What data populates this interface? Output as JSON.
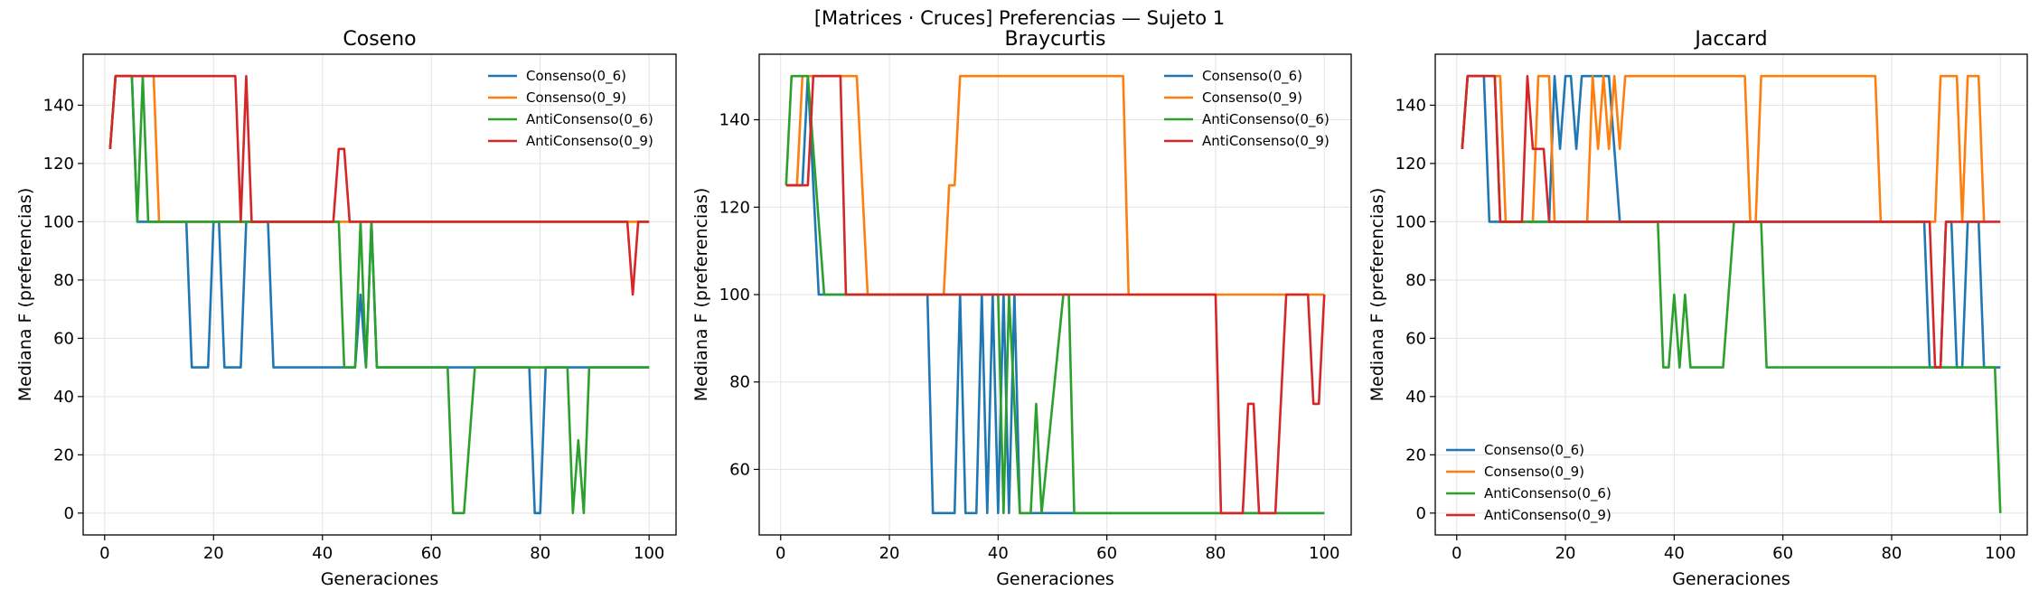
{
  "figure": {
    "suptitle": "[Matrices · Cruces] Preferencias — Sujeto 1"
  },
  "colors": {
    "Consenso(0_6)": "#1f77b4",
    "Consenso(0_9)": "#ff7f0e",
    "AntiConsenso(0_6)": "#2ca02c",
    "AntiConsenso(0_9)": "#d62728"
  },
  "chart_data": [
    {
      "type": "line",
      "title": "Coseno",
      "xlabel": "Generaciones",
      "ylabel": "Mediana F (preferencias)",
      "xlim": [
        -3.95,
        104.95
      ],
      "ylim": [
        -7.5,
        157.5
      ],
      "xticks": [
        0,
        20,
        40,
        60,
        80,
        100
      ],
      "yticks": [
        0,
        20,
        40,
        60,
        80,
        100,
        120,
        140
      ],
      "grid": true,
      "legend_loc": "upper right",
      "series": [
        {
          "name": "Consenso(0_6)",
          "points": [
            [
              1,
              125
            ],
            [
              2,
              150
            ],
            [
              5,
              150
            ],
            [
              6,
              100
            ],
            [
              15,
              100
            ],
            [
              16,
              50
            ],
            [
              19,
              50
            ],
            [
              20,
              100
            ],
            [
              21,
              100
            ],
            [
              22,
              50
            ],
            [
              25,
              50
            ],
            [
              26,
              100
            ],
            [
              30,
              100
            ],
            [
              31,
              50
            ],
            [
              46,
              50
            ],
            [
              47,
              75
            ],
            [
              48,
              50
            ],
            [
              49,
              100
            ],
            [
              50,
              50
            ],
            [
              78,
              50
            ],
            [
              79,
              0
            ],
            [
              80,
              0
            ],
            [
              81,
              50
            ],
            [
              100,
              50
            ]
          ]
        },
        {
          "name": "Consenso(0_9)",
          "points": [
            [
              1,
              125
            ],
            [
              2,
              150
            ],
            [
              9,
              150
            ],
            [
              10,
              100
            ],
            [
              20,
              100
            ],
            [
              21,
              100
            ],
            [
              100,
              100
            ]
          ]
        },
        {
          "name": "AntiConsenso(0_6)",
          "points": [
            [
              1,
              125
            ],
            [
              2,
              150
            ],
            [
              5,
              150
            ],
            [
              6,
              100
            ],
            [
              7,
              150
            ],
            [
              8,
              100
            ],
            [
              43,
              100
            ],
            [
              44,
              50
            ],
            [
              46,
              50
            ],
            [
              47,
              100
            ],
            [
              48,
              50
            ],
            [
              49,
              100
            ],
            [
              50,
              50
            ],
            [
              63,
              50
            ],
            [
              64,
              0
            ],
            [
              66,
              0
            ],
            [
              68,
              50
            ],
            [
              85,
              50
            ],
            [
              86,
              0
            ],
            [
              87,
              25
            ],
            [
              88,
              0
            ],
            [
              89,
              50
            ],
            [
              100,
              50
            ]
          ]
        },
        {
          "name": "AntiConsenso(0_9)",
          "points": [
            [
              1,
              125
            ],
            [
              2,
              150
            ],
            [
              24,
              150
            ],
            [
              25,
              100
            ],
            [
              26,
              150
            ],
            [
              27,
              100
            ],
            [
              42,
              100
            ],
            [
              43,
              125
            ],
            [
              44,
              125
            ],
            [
              45,
              100
            ],
            [
              96,
              100
            ],
            [
              97,
              75
            ],
            [
              98,
              100
            ],
            [
              100,
              100
            ]
          ]
        }
      ]
    },
    {
      "type": "line",
      "title": "Braycurtis",
      "xlabel": "Generaciones",
      "ylabel": "Mediana F (preferencias)",
      "xlim": [
        -3.95,
        104.95
      ],
      "ylim": [
        45,
        155
      ],
      "xticks": [
        0,
        20,
        40,
        60,
        80,
        100
      ],
      "yticks": [
        60,
        80,
        100,
        120,
        140
      ],
      "grid": true,
      "legend_loc": "upper right",
      "series": [
        {
          "name": "Consenso(0_6)",
          "points": [
            [
              1,
              125
            ],
            [
              4,
              125
            ],
            [
              5,
              150
            ],
            [
              7,
              100
            ],
            [
              27,
              100
            ],
            [
              28,
              50
            ],
            [
              32,
              50
            ],
            [
              33,
              100
            ],
            [
              34,
              50
            ],
            [
              36,
              50
            ],
            [
              37,
              100
            ],
            [
              38,
              50
            ],
            [
              39,
              100
            ],
            [
              40,
              50
            ],
            [
              41,
              100
            ],
            [
              42,
              50
            ],
            [
              43,
              100
            ],
            [
              44,
              50
            ],
            [
              100,
              50
            ]
          ]
        },
        {
          "name": "Consenso(0_9)",
          "points": [
            [
              1,
              125
            ],
            [
              3,
              125
            ],
            [
              4,
              150
            ],
            [
              14,
              150
            ],
            [
              16,
              100
            ],
            [
              30,
              100
            ],
            [
              31,
              125
            ],
            [
              32,
              125
            ],
            [
              33,
              150
            ],
            [
              63,
              150
            ],
            [
              64,
              100
            ],
            [
              100,
              100
            ]
          ]
        },
        {
          "name": "AntiConsenso(0_6)",
          "points": [
            [
              1,
              125
            ],
            [
              2,
              150
            ],
            [
              5,
              150
            ],
            [
              8,
              100
            ],
            [
              12,
              100
            ],
            [
              40,
              100
            ],
            [
              41,
              50
            ],
            [
              42,
              100
            ],
            [
              43,
              75
            ],
            [
              44,
              50
            ],
            [
              46,
              50
            ],
            [
              47,
              75
            ],
            [
              48,
              50
            ],
            [
              52,
              100
            ],
            [
              53,
              100
            ],
            [
              54,
              50
            ],
            [
              100,
              50
            ]
          ]
        },
        {
          "name": "AntiConsenso(0_9)",
          "points": [
            [
              1,
              125
            ],
            [
              5,
              125
            ],
            [
              6,
              150
            ],
            [
              11,
              150
            ],
            [
              12,
              100
            ],
            [
              80,
              100
            ],
            [
              81,
              50
            ],
            [
              85,
              50
            ],
            [
              86,
              75
            ],
            [
              87,
              75
            ],
            [
              88,
              50
            ],
            [
              91,
              50
            ],
            [
              93,
              100
            ],
            [
              97,
              100
            ],
            [
              98,
              75
            ],
            [
              99,
              75
            ],
            [
              100,
              100
            ]
          ]
        }
      ]
    },
    {
      "type": "line",
      "title": "Jaccard",
      "xlabel": "Generaciones",
      "ylabel": "Mediana F (preferencias)",
      "xlim": [
        -3.95,
        104.95
      ],
      "ylim": [
        -7.5,
        157.5
      ],
      "xticks": [
        0,
        20,
        40,
        60,
        80,
        100
      ],
      "yticks": [
        0,
        20,
        40,
        60,
        80,
        100,
        120,
        140
      ],
      "grid": true,
      "legend_loc": "lower left",
      "series": [
        {
          "name": "Consenso(0_6)",
          "points": [
            [
              1,
              125
            ],
            [
              2,
              150
            ],
            [
              5,
              150
            ],
            [
              6,
              100
            ],
            [
              8,
              100
            ],
            [
              9,
              100
            ],
            [
              17,
              100
            ],
            [
              18,
              150
            ],
            [
              19,
              125
            ],
            [
              20,
              150
            ],
            [
              21,
              150
            ],
            [
              22,
              125
            ],
            [
              23,
              150
            ],
            [
              28,
              150
            ],
            [
              29,
              125
            ],
            [
              30,
              100
            ],
            [
              86,
              100
            ],
            [
              87,
              50
            ],
            [
              89,
              50
            ],
            [
              90,
              100
            ],
            [
              91,
              100
            ],
            [
              92,
              50
            ],
            [
              93,
              50
            ],
            [
              94,
              100
            ],
            [
              96,
              100
            ],
            [
              97,
              50
            ],
            [
              100,
              50
            ]
          ]
        },
        {
          "name": "Consenso(0_9)",
          "points": [
            [
              1,
              125
            ],
            [
              2,
              150
            ],
            [
              8,
              150
            ],
            [
              9,
              100
            ],
            [
              14,
              100
            ],
            [
              15,
              150
            ],
            [
              17,
              150
            ],
            [
              18,
              100
            ],
            [
              24,
              100
            ],
            [
              25,
              150
            ],
            [
              26,
              125
            ],
            [
              27,
              150
            ],
            [
              28,
              125
            ],
            [
              29,
              150
            ],
            [
              30,
              125
            ],
            [
              31,
              150
            ],
            [
              53,
              150
            ],
            [
              54,
              100
            ],
            [
              55,
              100
            ],
            [
              56,
              150
            ],
            [
              77,
              150
            ],
            [
              78,
              100
            ],
            [
              88,
              100
            ],
            [
              89,
              150
            ],
            [
              92,
              150
            ],
            [
              93,
              100
            ],
            [
              94,
              150
            ],
            [
              96,
              150
            ],
            [
              97,
              100
            ]
          ]
        },
        {
          "name": "AntiConsenso(0_6)",
          "points": [
            [
              1,
              125
            ],
            [
              2,
              150
            ],
            [
              7,
              150
            ],
            [
              8,
              100
            ],
            [
              37,
              100
            ],
            [
              38,
              50
            ],
            [
              39,
              50
            ],
            [
              40,
              75
            ],
            [
              41,
              50
            ],
            [
              42,
              75
            ],
            [
              43,
              50
            ],
            [
              49,
              50
            ],
            [
              51,
              100
            ],
            [
              56,
              100
            ],
            [
              57,
              50
            ],
            [
              99,
              50
            ],
            [
              100,
              0
            ]
          ]
        },
        {
          "name": "AntiConsenso(0_9)",
          "points": [
            [
              1,
              125
            ],
            [
              2,
              150
            ],
            [
              7,
              150
            ],
            [
              8,
              100
            ],
            [
              12,
              100
            ],
            [
              13,
              150
            ],
            [
              14,
              125
            ],
            [
              16,
              125
            ],
            [
              17,
              100
            ],
            [
              87,
              100
            ],
            [
              88,
              50
            ],
            [
              89,
              50
            ],
            [
              90,
              100
            ],
            [
              100,
              100
            ]
          ]
        }
      ]
    }
  ]
}
